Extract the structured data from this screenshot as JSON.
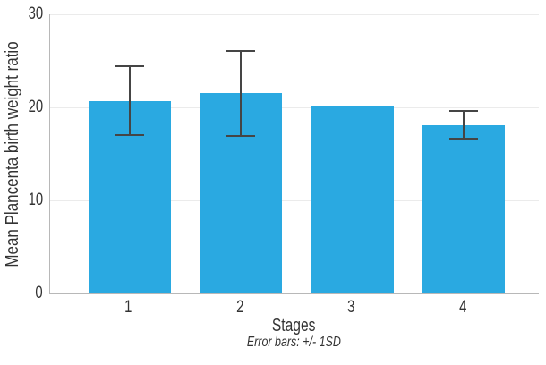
{
  "chart_data": {
    "type": "bar",
    "title": "",
    "categories": [
      "1",
      "2",
      "3",
      "4"
    ],
    "values": [
      20.7,
      21.5,
      20.2,
      18.1
    ],
    "error_sd": [
      3.7,
      4.6,
      null,
      1.5
    ],
    "xlabel": "Stages",
    "ylabel": "Mean Plancenta birth weight ratio",
    "footnote": "Error bars: +/- 1SD",
    "ylim": [
      0,
      30
    ],
    "yticks": [
      0,
      10,
      20,
      30
    ],
    "grid": true,
    "legend": null,
    "colors": {
      "bar": "#2AA9E1",
      "error_bar": "#454545",
      "gridline": "#EBEBEB",
      "axis_line": "#B8B8B8",
      "text": "#333333"
    }
  }
}
